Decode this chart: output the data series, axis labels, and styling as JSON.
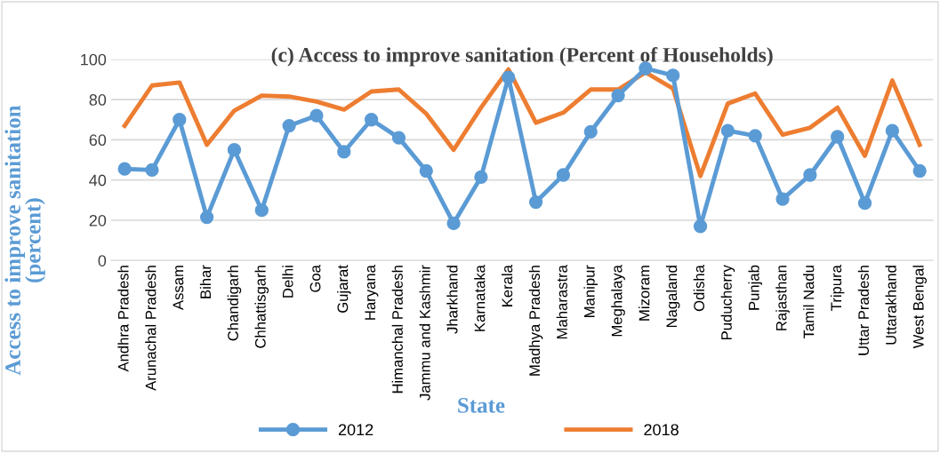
{
  "chart_data": {
    "type": "line",
    "title": "(c) Access to improve sanitation (Percent of Households)",
    "xlabel": "State",
    "ylabel": "Access to improve sanitation\n(percent)",
    "categories": [
      "Andhra Pradesh",
      "Arunachal Pradesh",
      "Assam",
      "Bihar",
      "Chandigarh",
      "Chhattisgarh",
      "Delhi",
      "Goa",
      "Gujarat",
      "Haryana",
      "Himanchal Pradesh",
      "Jammu and Kashmir",
      "Jharkhand",
      "Karnataka",
      "Kerala",
      "Madhya Pradesh",
      "Maharastra",
      "Manipur",
      "Meghalaya",
      "Mizoram",
      "Nagaland",
      "Odisha",
      "Puducherry",
      "Punjab",
      "Rajasthan",
      "Tamil Nadu",
      "Tripura",
      "Uttar Pradesh",
      "Uttarakhand",
      "West Bengal"
    ],
    "series": [
      {
        "name": "2012",
        "color": "#5b9bd5",
        "marker": "circle",
        "values": [
          45.5,
          45,
          70,
          21.5,
          55,
          25,
          67,
          72,
          54,
          70,
          61,
          44.5,
          18.5,
          41.5,
          91,
          29,
          42.5,
          64,
          82,
          95.5,
          92,
          17,
          64.5,
          62,
          30.5,
          42.5,
          61.5,
          28.5,
          64.5,
          44.5
        ]
      },
      {
        "name": "2018",
        "color": "#ed7d31",
        "marker": "none",
        "values": [
          67,
          87,
          88.5,
          57.5,
          74.5,
          82,
          81.5,
          79,
          75,
          84,
          85,
          73,
          55,
          76,
          95,
          68.5,
          73.5,
          85,
          85,
          93.5,
          85.5,
          42,
          78,
          83,
          62.5,
          66,
          76,
          52,
          89.5,
          57.5
        ]
      }
    ],
    "ylim": [
      0,
      100
    ],
    "yticks": [
      0,
      20,
      40,
      60,
      80,
      100
    ],
    "grid": "y",
    "legend": "bottom"
  }
}
